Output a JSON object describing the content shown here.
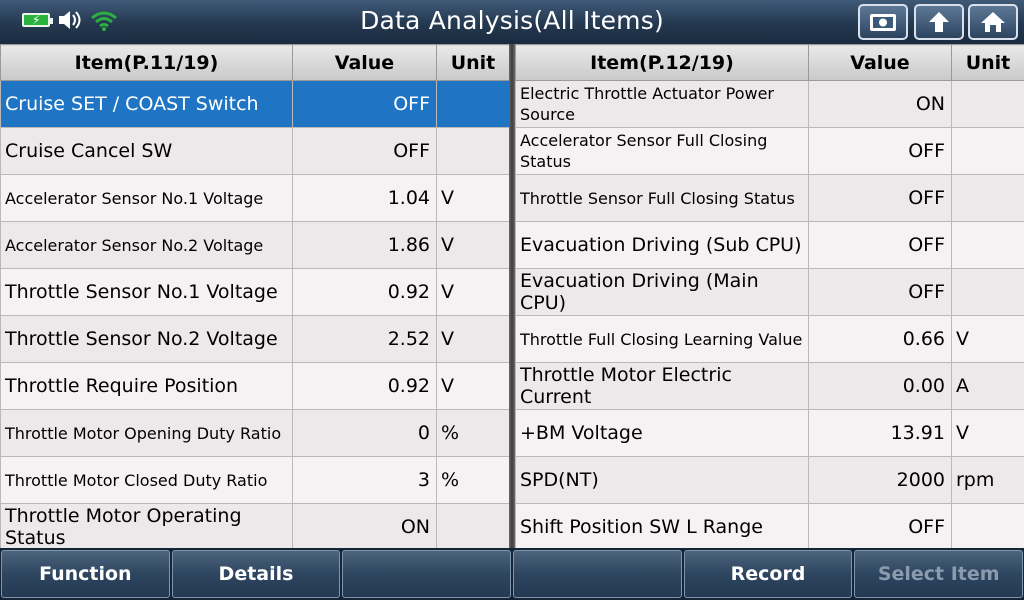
{
  "header": {
    "title": "Data Analysis(All Items)"
  },
  "status_icons": [
    "battery-charging-icon",
    "speaker-icon",
    "wifi-icon"
  ],
  "top_buttons": [
    "screenshot-icon",
    "back-icon",
    "home-icon"
  ],
  "left_table": {
    "headers": {
      "item": "Item(P.11/19)",
      "value": "Value",
      "unit": "Unit"
    },
    "rows": [
      {
        "item": "Cruise SET / COAST Switch",
        "value": "OFF",
        "unit": ""
      },
      {
        "item": "Cruise Cancel SW",
        "value": "OFF",
        "unit": ""
      },
      {
        "item": "Accelerator Sensor No.1 Voltage",
        "value": "1.04",
        "unit": "V"
      },
      {
        "item": "Accelerator Sensor No.2 Voltage",
        "value": "1.86",
        "unit": "V"
      },
      {
        "item": "Throttle Sensor No.1 Voltage",
        "value": "0.92",
        "unit": "V"
      },
      {
        "item": "Throttle Sensor No.2 Voltage",
        "value": "2.52",
        "unit": "V"
      },
      {
        "item": "Throttle Require Position",
        "value": "0.92",
        "unit": "V"
      },
      {
        "item": "Throttle Motor Opening Duty Ratio",
        "value": "0",
        "unit": "%"
      },
      {
        "item": "Throttle Motor Closed Duty Ratio",
        "value": "3",
        "unit": "%"
      },
      {
        "item": "Throttle Motor Operating Status",
        "value": "ON",
        "unit": ""
      }
    ]
  },
  "right_table": {
    "headers": {
      "item": "Item(P.12/19)",
      "value": "Value",
      "unit": "Unit"
    },
    "rows": [
      {
        "item": "Electric Throttle Actuator Power Source",
        "value": "ON",
        "unit": ""
      },
      {
        "item": "Accelerator Sensor Full Closing Status",
        "value": "OFF",
        "unit": ""
      },
      {
        "item": "Throttle Sensor Full Closing Status",
        "value": "OFF",
        "unit": ""
      },
      {
        "item": "Evacuation Driving (Sub CPU)",
        "value": "OFF",
        "unit": ""
      },
      {
        "item": "Evacuation Driving (Main CPU)",
        "value": "OFF",
        "unit": ""
      },
      {
        "item": "Throttle Full Closing Learning Value",
        "value": "0.66",
        "unit": "V"
      },
      {
        "item": "Throttle Motor Electric Current",
        "value": "0.00",
        "unit": "A"
      },
      {
        "item": "+BM Voltage",
        "value": "13.91",
        "unit": "V"
      },
      {
        "item": "SPD(NT)",
        "value": "2000",
        "unit": "rpm"
      },
      {
        "item": "Shift Position SW L Range",
        "value": "OFF",
        "unit": ""
      }
    ]
  },
  "bottom_bar": {
    "function_label": "Function",
    "details_label": "Details",
    "empty1_label": "",
    "empty2_label": "",
    "record_label": "Record",
    "select_item_label": "Select Item"
  },
  "colors": {
    "selected_row": "#1f75c4",
    "accent_green": "#2ab13e"
  }
}
